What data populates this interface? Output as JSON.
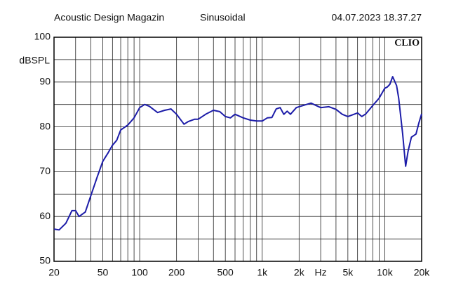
{
  "chart_data": {
    "type": "line",
    "title": "Acoustic Design Magazin",
    "subtitle": "Sinusoidal",
    "date": "04.07.2023 18.37.27",
    "brand": "CLIO",
    "y_label": "dBSPL",
    "x_label": "Hz",
    "x_log": true,
    "grid": true,
    "xlim": [
      20,
      20000
    ],
    "ylim": [
      50,
      100
    ],
    "yticks": [
      50,
      60,
      70,
      80,
      90,
      100
    ],
    "yminor": [
      55,
      65,
      75,
      85,
      95
    ],
    "xticks": [
      20,
      50,
      100,
      200,
      500,
      {
        "value": 1000,
        "label": "1k"
      },
      {
        "value": 2000,
        "label": "2k"
      },
      {
        "value": 5000,
        "label": "5k"
      },
      {
        "value": 10000,
        "label": "10k"
      },
      {
        "value": 20000,
        "label": "20k"
      }
    ],
    "xgrid": [
      30,
      40,
      60,
      70,
      80,
      90,
      300,
      400,
      600,
      700,
      800,
      900,
      3000,
      4000,
      6000,
      7000,
      8000,
      9000
    ],
    "x_label_at": 3000,
    "series": [
      {
        "name": "SPL",
        "color": "#1c1ca8",
        "x": [
          20,
          22,
          25,
          28,
          30,
          32,
          36,
          40,
          45,
          50,
          55,
          60,
          65,
          70,
          80,
          90,
          100,
          110,
          120,
          140,
          160,
          180,
          200,
          230,
          250,
          280,
          300,
          350,
          400,
          450,
          500,
          550,
          600,
          700,
          800,
          900,
          1000,
          1100,
          1200,
          1300,
          1400,
          1500,
          1600,
          1700,
          1900,
          2000,
          2300,
          2500,
          3000,
          3500,
          4000,
          4500,
          5000,
          6000,
          6500,
          7000,
          8000,
          9000,
          10000,
          10500,
          11000,
          11600,
          12500,
          13000,
          14000,
          14800,
          15500,
          16500,
          18000,
          19000,
          20000
        ],
        "values": [
          57.2,
          57,
          58.5,
          61.3,
          61.3,
          60,
          61,
          64.7,
          68.8,
          72.3,
          74.1,
          75.9,
          77,
          79.3,
          80.4,
          82,
          84.3,
          85,
          84.6,
          83.2,
          83.7,
          84,
          82.8,
          80.6,
          81.2,
          81.7,
          81.7,
          82.9,
          83.7,
          83.4,
          82.3,
          82,
          82.8,
          82,
          81.5,
          81.3,
          81.3,
          82,
          82.1,
          84,
          84.3,
          82.8,
          83.5,
          82.8,
          84.3,
          84.5,
          85,
          85.3,
          84.3,
          84.5,
          83.9,
          82.8,
          82.3,
          83.1,
          82.3,
          82.9,
          84.8,
          86.4,
          88.6,
          88.9,
          89.5,
          91.2,
          89.2,
          86.4,
          78.5,
          71.2,
          74.6,
          77.7,
          78.4,
          80.9,
          82.9
        ]
      }
    ]
  }
}
